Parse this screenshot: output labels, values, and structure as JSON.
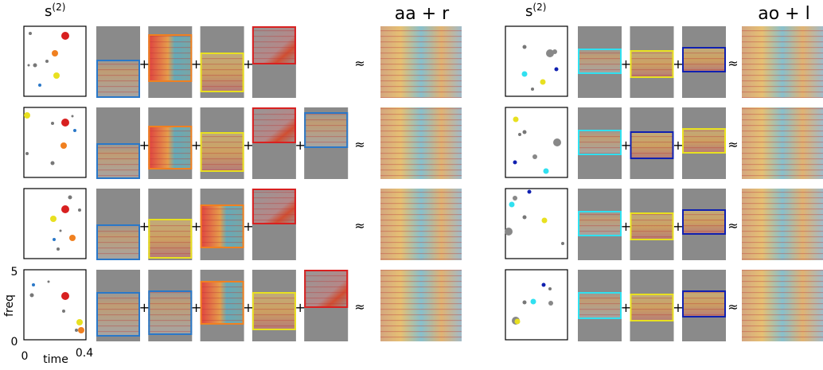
{
  "left": {
    "header": {
      "symbol": "s",
      "superscript": "(2)"
    },
    "title": "aa + r"
  },
  "right": {
    "header": {
      "symbol": "s",
      "superscript": "(2)"
    },
    "title": "ao + l"
  },
  "operators": {
    "plus": "+",
    "approx": "≈"
  },
  "axes": {
    "y_label": "freq",
    "y_top": "5",
    "y_bottom": "0",
    "x_label": "time",
    "x_left": "0",
    "x_right": "0.4"
  }
}
